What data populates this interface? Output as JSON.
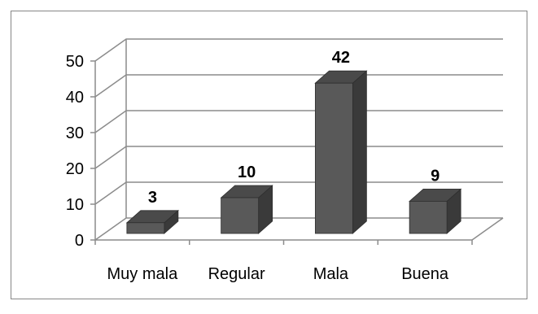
{
  "chart_data": {
    "type": "bar",
    "style": "3d-column",
    "categories": [
      "Muy mala",
      "Regular",
      "Mala",
      "Buena"
    ],
    "values": [
      3,
      10,
      42,
      9
    ],
    "data_labels": [
      "3",
      "10",
      "42",
      "9"
    ],
    "ylim": [
      0,
      50
    ],
    "yticks": [
      "0",
      "10",
      "20",
      "30",
      "40",
      "50"
    ],
    "grid": true,
    "legend": "none",
    "title": "",
    "xlabel": "",
    "ylabel": ""
  },
  "colors": {
    "bar_front": "#595959",
    "bar_side": "#3a3a3a",
    "bar_top": "#4a4a4a",
    "grid": "#8c8c8c",
    "frame": "#868686",
    "text": "#000000"
  }
}
